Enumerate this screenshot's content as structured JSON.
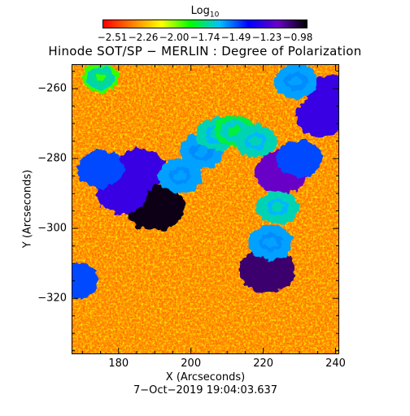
{
  "colorbar": {
    "title_main": "Log",
    "title_sub": "10",
    "ticks": [
      "−2.51",
      "−2.26",
      "−2.00",
      "−1.74",
      "−1.49",
      "−1.23",
      "−0.98"
    ],
    "colors": [
      "#ff0000",
      "#ff7f00",
      "#ffff00",
      "#00ff00",
      "#00c0ff",
      "#0000ff",
      "#6a00c8",
      "#000000"
    ]
  },
  "chart_data": {
    "type": "heatmap",
    "title": "Hinode SOT/SP − MERLIN : Degree of Polarization",
    "xlabel": "X (Arcseconds)",
    "ylabel": "Y (Arcseconds)",
    "xlim": [
      167,
      241
    ],
    "ylim": [
      -336,
      -253
    ],
    "xticks": [
      180,
      200,
      220,
      240
    ],
    "yticks": [
      -260,
      -280,
      -300,
      -320
    ],
    "color_range": [
      -2.51,
      -0.98
    ],
    "high_polarization_regions": [
      {
        "x": 190,
        "y": -294,
        "value": -1.0
      },
      {
        "x": 181,
        "y": -290,
        "value": -1.3
      },
      {
        "x": 186,
        "y": -283,
        "value": -1.3
      },
      {
        "x": 175,
        "y": -283,
        "value": -1.5
      },
      {
        "x": 197,
        "y": -285,
        "value": -1.6
      },
      {
        "x": 203,
        "y": -278,
        "value": -1.6
      },
      {
        "x": 207,
        "y": -273,
        "value": -1.7
      },
      {
        "x": 212,
        "y": -272,
        "value": -1.8
      },
      {
        "x": 218,
        "y": -275,
        "value": -1.7
      },
      {
        "x": 225,
        "y": -284,
        "value": -1.2
      },
      {
        "x": 230,
        "y": -280,
        "value": -1.5
      },
      {
        "x": 236,
        "y": -268,
        "value": -1.3
      },
      {
        "x": 239,
        "y": -262,
        "value": -1.3
      },
      {
        "x": 229,
        "y": -258,
        "value": -1.6
      },
      {
        "x": 221,
        "y": -312,
        "value": -1.1
      },
      {
        "x": 222,
        "y": -304,
        "value": -1.6
      },
      {
        "x": 224,
        "y": -294,
        "value": -1.7
      },
      {
        "x": 168,
        "y": -315,
        "value": -1.5
      },
      {
        "x": 175,
        "y": -257,
        "value": -1.9
      }
    ]
  },
  "footer": {
    "date": "7−Oct−2019 19:04:03.637"
  }
}
